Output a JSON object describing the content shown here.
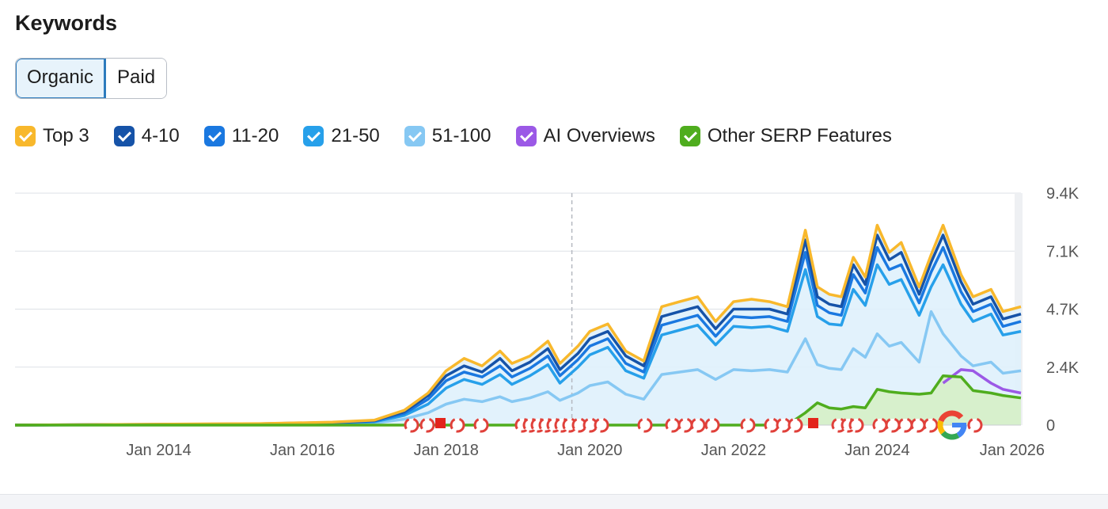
{
  "header": {
    "title": "Keywords"
  },
  "tabs": [
    {
      "label": "Organic",
      "active": true
    },
    {
      "label": "Paid",
      "active": false
    }
  ],
  "legend": [
    {
      "label": "Top 3",
      "color": "#f8b82c"
    },
    {
      "label": "4-10",
      "color": "#1653a8"
    },
    {
      "label": "11-20",
      "color": "#1a78e0"
    },
    {
      "label": "21-50",
      "color": "#27a0ea"
    },
    {
      "label": "51-100",
      "color": "#86c8f3"
    },
    {
      "label": "AI Overviews",
      "color": "#9b59e6"
    },
    {
      "label": "Other SERP Features",
      "color": "#4fad1e"
    }
  ],
  "chart_data": {
    "type": "area",
    "x_ticks": [
      "Jan 2014",
      "Jan 2016",
      "Jan 2018",
      "Jan 2020",
      "Jan 2022",
      "Jan 2024",
      "Jan 2026"
    ],
    "y_ticks": [
      "0",
      "2.4K",
      "4.7K",
      "7.1K",
      "9.4K"
    ],
    "ylim": [
      0,
      9400
    ],
    "xlim": [
      "2012-01",
      "2026-01"
    ],
    "grid": true,
    "y_axis_position": "right",
    "cursor_x": "2019-10",
    "dates": [
      "2012-01",
      "2015-06",
      "2016-06",
      "2017-01",
      "2017-06",
      "2017-10",
      "2018-01",
      "2018-04",
      "2018-07",
      "2018-10",
      "2018-12",
      "2019-03",
      "2019-06",
      "2019-08",
      "2019-11",
      "2020-01",
      "2020-04",
      "2020-07",
      "2020-10",
      "2021-01",
      "2021-04",
      "2021-07",
      "2021-10",
      "2022-01",
      "2022-04",
      "2022-07",
      "2022-10",
      "2023-01",
      "2023-03",
      "2023-05",
      "2023-07",
      "2023-09",
      "2023-11",
      "2024-01",
      "2024-03",
      "2024-05",
      "2024-08",
      "2024-10",
      "2024-12",
      "2025-03",
      "2025-05",
      "2025-08",
      "2025-10",
      "2026-01"
    ],
    "series": [
      {
        "name": "Top 3",
        "values": [
          0,
          60,
          120,
          200,
          600,
          1300,
          2200,
          2700,
          2400,
          3000,
          2500,
          2800,
          3400,
          2500,
          3200,
          3800,
          4100,
          3000,
          2600,
          4800,
          5000,
          5200,
          4200,
          5000,
          5100,
          5000,
          4800,
          7900,
          5600,
          5300,
          5200,
          6800,
          6000,
          8100,
          7000,
          7400,
          5600,
          6900,
          8100,
          6100,
          5200,
          5500,
          4600,
          4800
        ]
      },
      {
        "name": "4-10",
        "values": [
          0,
          55,
          110,
          180,
          540,
          1200,
          2000,
          2400,
          2150,
          2700,
          2200,
          2550,
          3100,
          2250,
          2900,
          3500,
          3800,
          2800,
          2400,
          4400,
          4600,
          4800,
          3900,
          4700,
          4700,
          4700,
          4500,
          7500,
          5200,
          4900,
          4800,
          6500,
          5700,
          7700,
          6700,
          7000,
          5300,
          6600,
          7700,
          5800,
          4900,
          5200,
          4300,
          4500
        ]
      },
      {
        "name": "11-20",
        "values": [
          0,
          48,
          95,
          160,
          470,
          1050,
          1800,
          2150,
          1950,
          2400,
          1950,
          2300,
          2800,
          2000,
          2650,
          3200,
          3500,
          2500,
          2150,
          4050,
          4250,
          4450,
          3600,
          4400,
          4350,
          4400,
          4200,
          7000,
          4850,
          4550,
          4450,
          6100,
          5350,
          7200,
          6300,
          6500,
          4950,
          6200,
          7200,
          5400,
          4600,
          4900,
          4000,
          4200
        ]
      },
      {
        "name": "21-50",
        "values": [
          0,
          40,
          80,
          130,
          390,
          850,
          1500,
          1850,
          1650,
          2050,
          1650,
          2000,
          2450,
          1700,
          2350,
          2850,
          3150,
          2200,
          1900,
          3650,
          3850,
          4050,
          3250,
          4000,
          3950,
          4000,
          3800,
          6300,
          4400,
          4100,
          4050,
          5500,
          4850,
          6500,
          5700,
          5900,
          4450,
          5600,
          6500,
          4900,
          4200,
          4500,
          3650,
          3800
        ]
      },
      {
        "name": "51-100",
        "values": [
          0,
          25,
          50,
          80,
          240,
          500,
          850,
          1050,
          950,
          1150,
          950,
          1100,
          1350,
          1000,
          1300,
          1600,
          1750,
          1250,
          1050,
          2050,
          2150,
          2250,
          1850,
          2250,
          2200,
          2250,
          2150,
          3500,
          2450,
          2300,
          2250,
          3100,
          2750,
          3700,
          3200,
          3350,
          2550,
          4600,
          3700,
          2800,
          2400,
          2550,
          2100,
          2200
        ]
      },
      {
        "name": "AI Overviews",
        "values": [
          0,
          0,
          0,
          0,
          0,
          0,
          0,
          0,
          0,
          0,
          0,
          0,
          0,
          0,
          0,
          0,
          0,
          0,
          0,
          0,
          0,
          0,
          0,
          0,
          0,
          0,
          0,
          0,
          0,
          0,
          0,
          0,
          0,
          0,
          0,
          0,
          0,
          0,
          1700,
          2250,
          2200,
          1700,
          1450,
          1300
        ]
      },
      {
        "name": "Other SERP Features",
        "values": [
          0,
          0,
          0,
          0,
          0,
          0,
          0,
          0,
          0,
          0,
          0,
          0,
          0,
          0,
          0,
          0,
          0,
          0,
          0,
          0,
          0,
          0,
          0,
          0,
          0,
          0,
          0,
          500,
          900,
          700,
          650,
          750,
          700,
          1450,
          1350,
          1300,
          1250,
          1300,
          2000,
          1950,
          1400,
          1300,
          1200,
          1100
        ]
      }
    ]
  }
}
